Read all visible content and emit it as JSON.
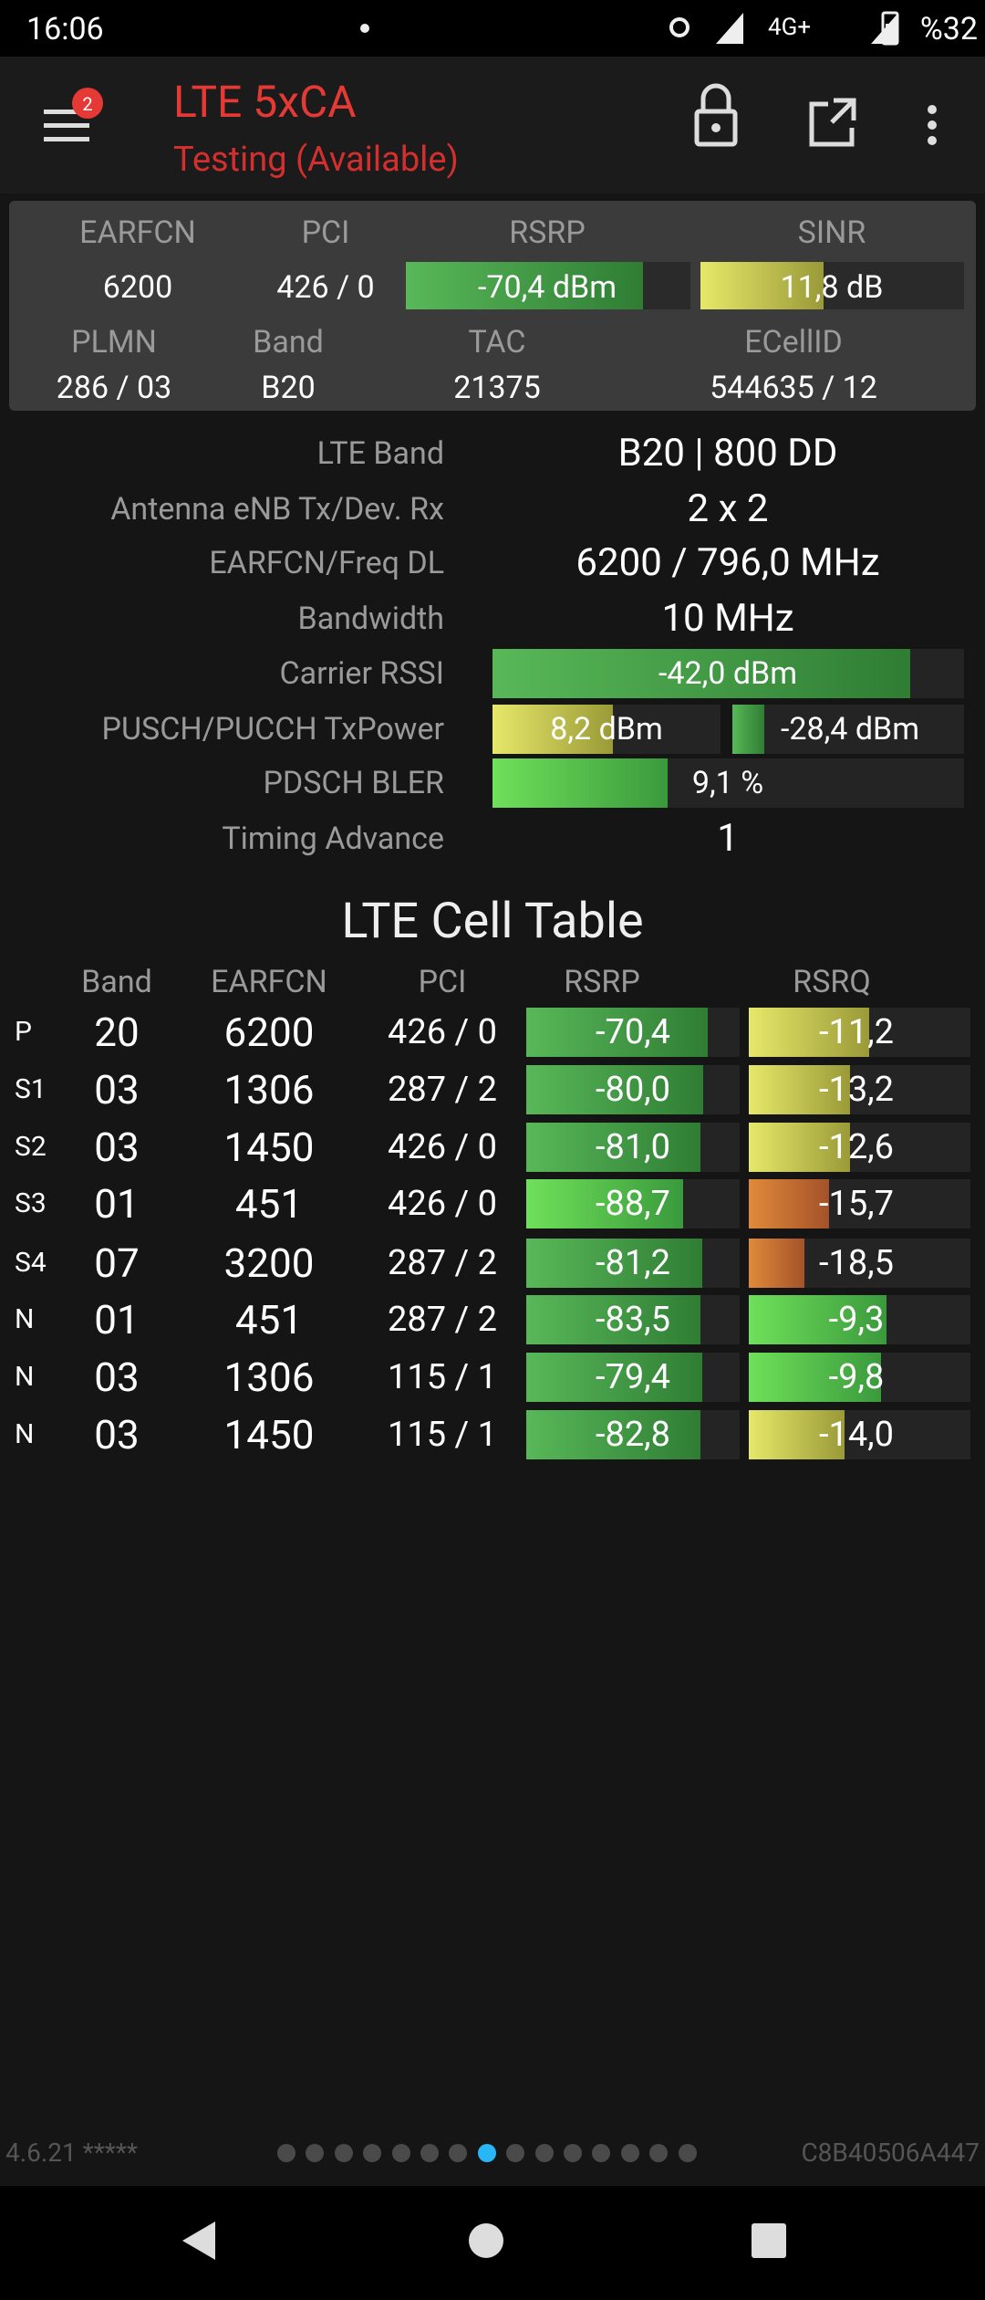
{
  "status_bar": {
    "time": "16:06",
    "network": "4G+",
    "battery": "%32"
  },
  "app_bar": {
    "badge": "2",
    "title": "LTE 5xCA",
    "subtitle": "Testing (Available)"
  },
  "summary": [
    {
      "label": "EARFCN",
      "value": "6200"
    },
    {
      "label": "PCI",
      "value": "426 / 0"
    },
    {
      "label": "RSRP",
      "value": "-70,4 dBm"
    },
    {
      "label": "SINR",
      "value": "11,8 dB"
    },
    {
      "label": "PLMN",
      "value": "286 / 03"
    },
    {
      "label": "Band",
      "value": "B20"
    },
    {
      "label": "TAC",
      "value": "21375"
    },
    {
      "label": "ECellID",
      "value": "544635 / 12"
    }
  ],
  "details": [
    {
      "label": "LTE Band",
      "values": [
        "B20 | 800 DD"
      ]
    },
    {
      "label": "Antenna eNB Tx/Dev. Rx",
      "values": [
        "2 x 2"
      ]
    },
    {
      "label": "EARFCN/Freq DL",
      "values": [
        "6200 / 796,0 MHz"
      ]
    },
    {
      "label": "Bandwidth",
      "values": [
        "10 MHz"
      ]
    },
    {
      "label": "Carrier RSSI",
      "values": [
        "-42,0 dBm"
      ]
    },
    {
      "label": "PUSCH/PUCCH TxPower",
      "values": [
        "8,2 dBm",
        "-28,4 dBm"
      ]
    },
    {
      "label": "PDSCH BLER",
      "values": [
        "9,1 %"
      ]
    },
    {
      "label": "Timing Advance",
      "values": [
        "1"
      ]
    }
  ],
  "cell_table": {
    "title": "LTE Cell Table",
    "headers": [
      "Band",
      "EARFCN",
      "PCI",
      "RSRP",
      "RSRQ"
    ],
    "rows": [
      [
        "P",
        "20",
        "6200",
        "426 / 0",
        "-70,4",
        "-11,2"
      ],
      [
        "S1",
        "03",
        "1306",
        "287 / 2",
        "-80,0",
        "-13,2"
      ],
      [
        "S2",
        "03",
        "1450",
        "426 / 0",
        "-81,0",
        "-12,6"
      ],
      [
        "S3",
        "01",
        "451",
        "426 / 0",
        "-88,7",
        "-15,7"
      ],
      [
        "S4",
        "07",
        "3200",
        "287 / 2",
        "-81,2",
        "-18,5"
      ],
      [
        "N",
        "01",
        "451",
        "287 / 2",
        "-83,5",
        "-9,3"
      ],
      [
        "N",
        "03",
        "1306",
        "115 / 1",
        "-79,4",
        "-9,8"
      ],
      [
        "N",
        "03",
        "1450",
        "115 / 1",
        "-82,8",
        "-14,0"
      ]
    ]
  },
  "footer": {
    "version": "4.6.21 *****",
    "device_id": "C8B40506A447"
  }
}
